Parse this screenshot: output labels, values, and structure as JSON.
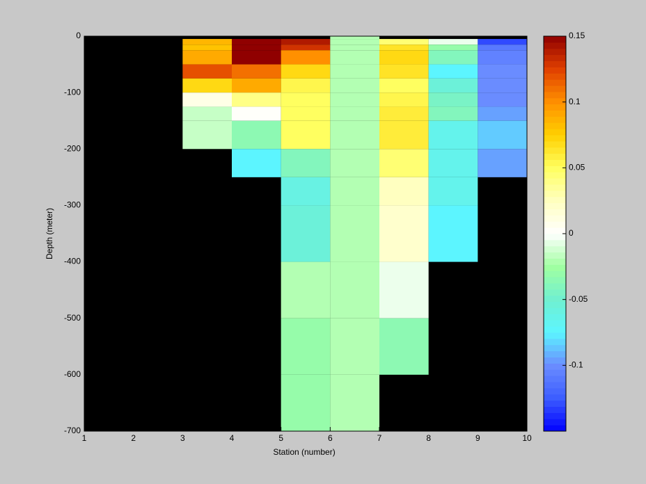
{
  "chart_data": {
    "type": "heatmap",
    "x_label": "Station (number)",
    "y_label": "Depth (meter)",
    "xlim": [
      1,
      10
    ],
    "xticks": [
      1,
      2,
      3,
      4,
      5,
      6,
      7,
      8,
      9,
      10
    ],
    "ylim": [
      -700,
      0
    ],
    "yticks": [
      0,
      -100,
      -200,
      -300,
      -400,
      -500,
      -600,
      -700
    ],
    "x_edges": [
      3,
      4,
      5,
      6,
      7,
      8,
      9,
      10
    ],
    "y_edges": [
      0,
      -5,
      -15,
      -25,
      -50,
      -75,
      -100,
      -125,
      -150,
      -200,
      -250,
      -300,
      -400,
      -500,
      -600,
      -700
    ],
    "values": [
      [
        null,
        null,
        null,
        -0.02,
        null,
        null,
        null
      ],
      [
        0.085,
        0.15,
        0.14,
        -0.02,
        0.045,
        -0.005,
        -0.13
      ],
      [
        0.08,
        0.15,
        0.13,
        -0.02,
        0.065,
        -0.03,
        -0.11
      ],
      [
        0.09,
        0.15,
        0.1,
        -0.02,
        0.07,
        -0.04,
        -0.105
      ],
      [
        0.12,
        0.11,
        0.07,
        -0.02,
        0.065,
        -0.075,
        -0.1
      ],
      [
        0.07,
        0.09,
        0.055,
        -0.02,
        0.05,
        -0.055,
        -0.1
      ],
      [
        0.01,
        0.04,
        0.05,
        -0.02,
        0.055,
        -0.045,
        -0.1
      ],
      [
        -0.015,
        0.002,
        0.05,
        -0.02,
        0.06,
        -0.04,
        -0.095
      ],
      [
        -0.015,
        -0.035,
        0.05,
        -0.02,
        0.06,
        -0.065,
        -0.085
      ],
      [
        null,
        -0.075,
        -0.04,
        -0.02,
        0.045,
        -0.065,
        -0.095
      ],
      [
        null,
        null,
        -0.06,
        -0.02,
        0.025,
        -0.065,
        null
      ],
      [
        null,
        null,
        -0.055,
        -0.02,
        0.02,
        -0.075,
        null
      ],
      [
        null,
        null,
        -0.02,
        -0.02,
        -0.005,
        null,
        null
      ],
      [
        null,
        null,
        -0.03,
        -0.02,
        -0.035,
        null,
        null
      ],
      [
        null,
        null,
        -0.03,
        -0.02,
        null,
        null,
        null
      ]
    ],
    "background_color": "#000000",
    "clim": [
      -0.15,
      0.15
    ],
    "cticks": [
      -0.1,
      -0.05,
      0,
      0.05,
      0.1,
      0.15
    ],
    "colormap": [
      "#0000ff",
      "#3c5cff",
      "#6a8cff",
      "#5cf5ff",
      "#70f0d0",
      "#a0ffa0",
      "#ffffff",
      "#ffffc0",
      "#ffff60",
      "#ffd000",
      "#ff9000",
      "#e04000",
      "#900000"
    ]
  }
}
